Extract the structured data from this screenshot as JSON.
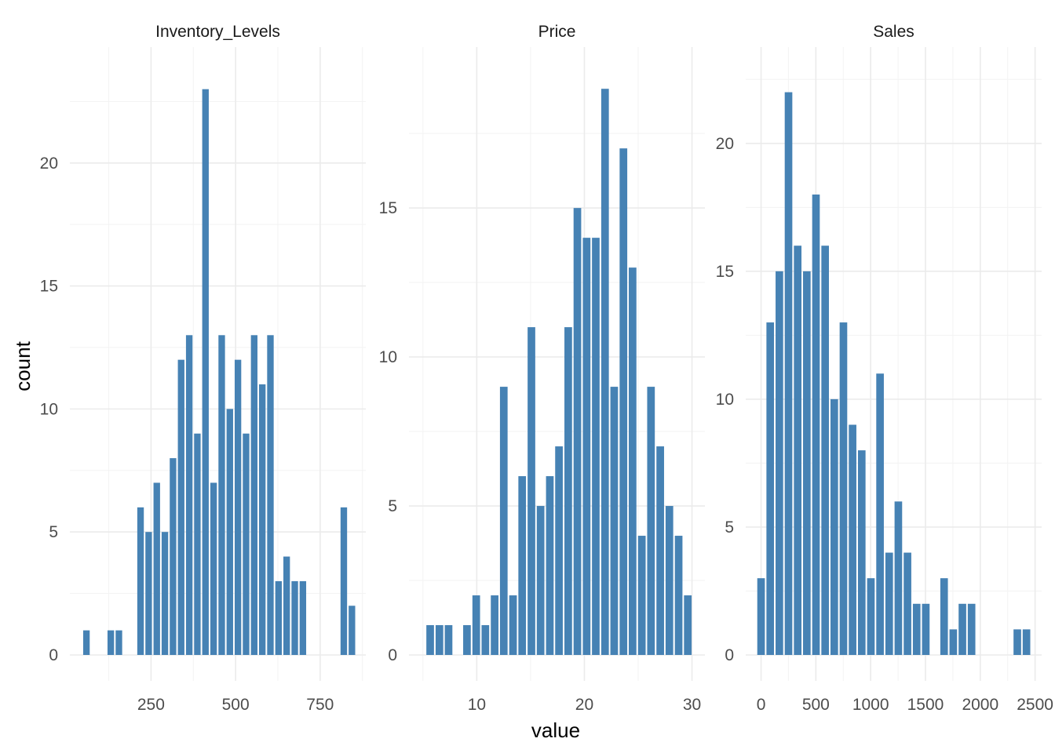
{
  "chart_data": {
    "type": "bar",
    "subtype": "faceted histogram",
    "xlabel": "value",
    "ylabel": "count",
    "bar_color": "#4682b4",
    "grid": true,
    "facets": [
      {
        "title": "Inventory_Levels",
        "bin_width": 24,
        "x": [
          59,
          131,
          155,
          219,
          243,
          267,
          291,
          315,
          339,
          363,
          387,
          411,
          435,
          459,
          483,
          507,
          531,
          555,
          579,
          603,
          627,
          651,
          675,
          699,
          723,
          747,
          820,
          844
        ],
        "values": [
          1,
          1,
          1,
          6,
          5,
          7,
          5,
          8,
          12,
          13,
          9,
          23,
          7,
          13,
          10,
          12,
          9,
          13,
          11,
          13,
          3,
          4,
          3,
          3,
          0,
          0,
          6,
          2
        ],
        "xlim": [
          10,
          885
        ],
        "ylim": [
          0,
          23.5
        ],
        "x_ticks": [
          250,
          500,
          750
        ],
        "x_tick_labels": [
          "250",
          "500",
          "750"
        ],
        "y_ticks": [
          0,
          5,
          10,
          15,
          20
        ],
        "y_tick_labels": [
          "0",
          "5",
          "10",
          "15",
          "20"
        ]
      },
      {
        "title": "Price",
        "bin_width": 0.855,
        "x": [
          5.67,
          6.53,
          7.38,
          8.24,
          9.09,
          9.95,
          10.8,
          11.66,
          12.51,
          13.37,
          14.22,
          15.08,
          15.93,
          16.79,
          17.64,
          18.5,
          19.35,
          20.21,
          21.06,
          21.92,
          22.77,
          23.63,
          24.48,
          25.34,
          26.19,
          27.05,
          27.9,
          28.76,
          29.61
        ],
        "values": [
          1,
          1,
          1,
          0,
          1,
          2,
          1,
          2,
          9,
          2,
          6,
          11,
          5,
          6,
          7,
          11,
          15,
          14,
          14,
          19,
          9,
          17,
          13,
          4,
          9,
          7,
          5,
          4,
          2
        ],
        "extra_bar": {
          "x": 29.61,
          "value": 2
        },
        "xlim": [
          3.7,
          31.2
        ],
        "ylim": [
          0,
          19.4
        ],
        "x_ticks": [
          10,
          20,
          30
        ],
        "x_tick_labels": [
          "10",
          "20",
          "30"
        ],
        "y_ticks": [
          0,
          5,
          10,
          15
        ],
        "y_tick_labels": [
          "0",
          "5",
          "10",
          "15"
        ]
      },
      {
        "title": "Sales",
        "bin_width": 83.5,
        "x": [
          0,
          83.5,
          167,
          250.5,
          334,
          417.5,
          501,
          584.5,
          668,
          751.5,
          835,
          918.5,
          1002,
          1085.5,
          1169,
          1252.5,
          1336,
          1419.5,
          1503,
          1586.5,
          1670,
          1753.5,
          1837,
          1920.5,
          2004,
          2087.5,
          2171,
          2254.5,
          2338,
          2421.5
        ],
        "values": [
          3,
          13,
          15,
          22,
          16,
          15,
          18,
          16,
          10,
          13,
          9,
          8,
          3,
          11,
          4,
          6,
          4,
          2,
          2,
          0,
          3,
          1,
          2,
          2,
          0,
          0,
          0,
          0,
          1,
          1
        ],
        "xlim": [
          -140,
          2560
        ],
        "ylim": [
          0,
          22.6
        ],
        "x_ticks": [
          0,
          500,
          1000,
          1500,
          2000,
          2500
        ],
        "x_tick_labels": [
          "0",
          "500",
          "1000",
          "1500",
          "2000",
          "2500"
        ],
        "y_ticks": [
          0,
          5,
          10,
          15,
          20
        ],
        "y_tick_labels": [
          "0",
          "5",
          "10",
          "15",
          "20"
        ]
      }
    ]
  }
}
